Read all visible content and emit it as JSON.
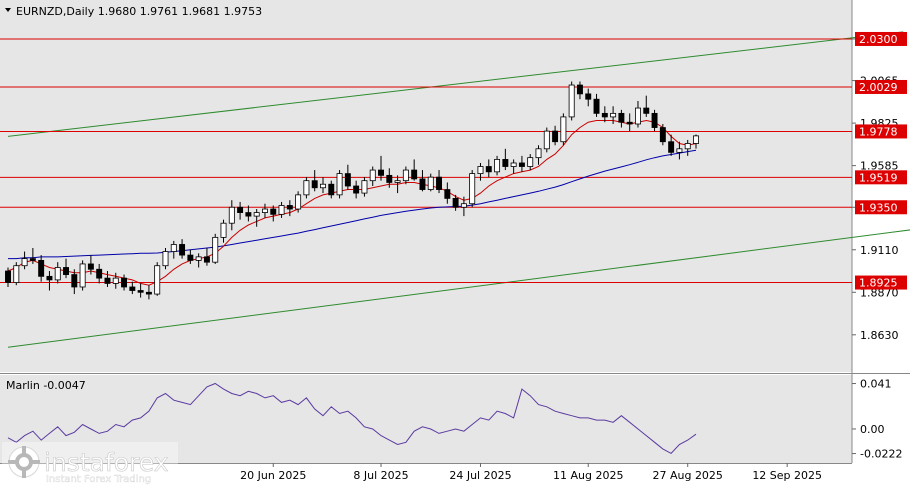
{
  "header": {
    "symbol_line": "EURNZD,Daily  1.9680 1.9761 1.9681 1.9753"
  },
  "indicator": {
    "label": "Marlin -0.0047"
  },
  "watermark": {
    "brand": "instaforex",
    "tagline": "Instant Forex Trading"
  },
  "colors": {
    "background": "#ffffff",
    "plot_bg": "#e6e6e6",
    "candle_up_fill": "#ffffff",
    "candle_down_fill": "#000000",
    "ma_fast": "#cc0000",
    "ma_slow": "#0000aa",
    "channel": "#2e8b2e",
    "level_line": "#dd0000",
    "level_label_bg": "#dd0000",
    "oscillator": "#5b3aa0"
  },
  "chart_data": [
    {
      "type": "candlestick",
      "title": "EURNZD,Daily",
      "ylim": [
        1.842,
        2.052
      ],
      "y_ticks": [
        "1.8630",
        "1.8870",
        "1.9110",
        "1.9350",
        "1.9585",
        "1.9825",
        "2.0065",
        "2.0300"
      ],
      "x_ticks": [
        {
          "label": "20 Jun 2025",
          "index": 32
        },
        {
          "label": "8 Jul 2025",
          "index": 45
        },
        {
          "label": "24 Jul 2025",
          "index": 57
        },
        {
          "label": "11 Aug 2025",
          "index": 70
        },
        {
          "label": "27 Aug 2025",
          "index": 82
        },
        {
          "label": "12 Sep 2025",
          "index": 94
        }
      ],
      "levels": [
        {
          "value": 2.03,
          "label": "2.0300"
        },
        {
          "value": 2.0029,
          "label": "2.0029"
        },
        {
          "value": 1.9778,
          "label": "1.9778"
        },
        {
          "value": 1.9519,
          "label": "1.9519"
        },
        {
          "value": 1.935,
          "label": "1.9350"
        },
        {
          "value": 1.8925,
          "label": "1.8925"
        }
      ],
      "channel_lines": [
        {
          "start": [
            0,
            1.975
          ],
          "end": [
            108,
            2.034
          ]
        },
        {
          "start": [
            0,
            1.856
          ],
          "end": [
            120,
            1.929
          ]
        }
      ],
      "ohlc": [
        [
          1.899,
          1.901,
          1.89,
          1.8925
        ],
        [
          1.8925,
          1.904,
          1.891,
          1.902
        ],
        [
          1.902,
          1.91,
          1.9,
          1.906
        ],
        [
          1.906,
          1.912,
          1.903,
          1.905
        ],
        [
          1.905,
          1.908,
          1.893,
          1.896
        ],
        [
          1.896,
          1.899,
          1.888,
          1.894
        ],
        [
          1.894,
          1.904,
          1.892,
          1.901
        ],
        [
          1.901,
          1.906,
          1.895,
          1.897
        ],
        [
          1.897,
          1.9,
          1.886,
          1.89
        ],
        [
          1.89,
          1.905,
          1.888,
          1.903
        ],
        [
          1.903,
          1.908,
          1.897,
          1.9
        ],
        [
          1.9,
          1.903,
          1.892,
          1.895
        ],
        [
          1.895,
          1.899,
          1.89,
          1.892
        ],
        [
          1.892,
          1.898,
          1.889,
          1.895
        ],
        [
          1.895,
          1.897,
          1.888,
          1.89
        ],
        [
          1.89,
          1.893,
          1.886,
          1.888
        ],
        [
          1.888,
          1.892,
          1.884,
          1.887
        ],
        [
          1.887,
          1.891,
          1.883,
          1.886
        ],
        [
          1.886,
          1.904,
          1.885,
          1.902
        ],
        [
          1.902,
          1.912,
          1.9,
          1.91
        ],
        [
          1.91,
          1.916,
          1.906,
          1.914
        ],
        [
          1.914,
          1.917,
          1.906,
          1.908
        ],
        [
          1.908,
          1.911,
          1.903,
          1.905
        ],
        [
          1.905,
          1.909,
          1.901,
          1.907
        ],
        [
          1.907,
          1.912,
          1.902,
          1.904
        ],
        [
          1.904,
          1.92,
          1.903,
          1.918
        ],
        [
          1.918,
          1.928,
          1.915,
          1.926
        ],
        [
          1.926,
          1.939,
          1.922,
          1.935
        ],
        [
          1.935,
          1.938,
          1.928,
          1.932
        ],
        [
          1.932,
          1.936,
          1.927,
          1.93
        ],
        [
          1.93,
          1.934,
          1.924,
          1.932
        ],
        [
          1.932,
          1.937,
          1.929,
          1.934
        ],
        [
          1.934,
          1.936,
          1.927,
          1.931
        ],
        [
          1.931,
          1.938,
          1.929,
          1.936
        ],
        [
          1.936,
          1.939,
          1.93,
          1.934
        ],
        [
          1.934,
          1.944,
          1.932,
          1.942
        ],
        [
          1.942,
          1.952,
          1.94,
          1.95
        ],
        [
          1.95,
          1.956,
          1.944,
          1.946
        ],
        [
          1.946,
          1.952,
          1.943,
          1.948
        ],
        [
          1.948,
          1.95,
          1.94,
          1.942
        ],
        [
          1.942,
          1.956,
          1.94,
          1.954
        ],
        [
          1.954,
          1.959,
          1.945,
          1.947
        ],
        [
          1.947,
          1.95,
          1.94,
          1.943
        ],
        [
          1.943,
          1.952,
          1.941,
          1.95
        ],
        [
          1.95,
          1.958,
          1.947,
          1.956
        ],
        [
          1.956,
          1.964,
          1.95,
          1.953
        ],
        [
          1.953,
          1.957,
          1.946,
          1.949
        ],
        [
          1.949,
          1.953,
          1.943,
          1.95
        ],
        [
          1.95,
          1.958,
          1.948,
          1.956
        ],
        [
          1.956,
          1.962,
          1.95,
          1.951
        ],
        [
          1.951,
          1.956,
          1.944,
          1.945
        ],
        [
          1.945,
          1.954,
          1.944,
          1.952
        ],
        [
          1.952,
          1.956,
          1.943,
          1.945
        ],
        [
          1.945,
          1.949,
          1.937,
          1.94
        ],
        [
          1.94,
          1.942,
          1.933,
          1.935
        ],
        [
          1.935,
          1.941,
          1.93,
          1.937
        ],
        [
          1.937,
          1.956,
          1.935,
          1.954
        ],
        [
          1.954,
          1.96,
          1.95,
          1.958
        ],
        [
          1.958,
          1.962,
          1.952,
          1.955
        ],
        [
          1.955,
          1.964,
          1.953,
          1.962
        ],
        [
          1.962,
          1.968,
          1.956,
          1.958
        ],
        [
          1.958,
          1.962,
          1.954,
          1.96
        ],
        [
          1.96,
          1.964,
          1.955,
          1.958
        ],
        [
          1.958,
          1.965,
          1.956,
          1.963
        ],
        [
          1.963,
          1.97,
          1.959,
          1.968
        ],
        [
          1.968,
          1.98,
          1.966,
          1.978
        ],
        [
          1.978,
          1.981,
          1.97,
          1.972
        ],
        [
          1.972,
          1.988,
          1.97,
          1.986
        ],
        [
          1.986,
          2.006,
          1.984,
          2.004
        ],
        [
          2.004,
          2.006,
          1.996,
          1.999
        ],
        [
          1.999,
          2.002,
          1.992,
          1.996
        ],
        [
          1.996,
          1.999,
          1.986,
          1.988
        ],
        [
          1.988,
          1.992,
          1.983,
          1.986
        ],
        [
          1.986,
          1.992,
          1.982,
          1.988
        ],
        [
          1.988,
          1.99,
          1.98,
          1.983
        ],
        [
          1.983,
          1.988,
          1.978,
          1.982
        ],
        [
          1.982,
          1.995,
          1.98,
          1.991
        ],
        [
          1.991,
          1.998,
          1.986,
          1.988
        ],
        [
          1.988,
          1.99,
          1.978,
          1.98
        ],
        [
          1.98,
          1.982,
          1.97,
          1.972
        ],
        [
          1.972,
          1.976,
          1.964,
          1.966
        ],
        [
          1.966,
          1.972,
          1.962,
          1.968
        ],
        [
          1.968,
          1.973,
          1.964,
          1.971
        ],
        [
          1.971,
          1.9761,
          1.9681,
          1.9753
        ]
      ],
      "ma_fast": [
        1.899,
        1.901,
        1.904,
        1.905,
        1.903,
        1.901,
        1.9,
        1.899,
        1.898,
        1.898,
        1.899,
        1.898,
        1.897,
        1.896,
        1.895,
        1.894,
        1.892,
        1.891,
        1.893,
        1.896,
        1.9,
        1.903,
        1.905,
        1.906,
        1.907,
        1.909,
        1.913,
        1.918,
        1.922,
        1.925,
        1.927,
        1.929,
        1.93,
        1.931,
        1.932,
        1.934,
        1.937,
        1.94,
        1.942,
        1.943,
        1.944,
        1.945,
        1.945,
        1.945,
        1.946,
        1.947,
        1.948,
        1.948,
        1.949,
        1.949,
        1.948,
        1.947,
        1.946,
        1.944,
        1.941,
        1.939,
        1.94,
        1.943,
        1.947,
        1.95,
        1.952,
        1.954,
        1.955,
        1.956,
        1.958,
        1.962,
        1.965,
        1.97,
        1.976,
        1.98,
        1.983,
        1.984,
        1.984,
        1.984,
        1.983,
        1.982,
        1.983,
        1.984,
        1.983,
        1.98,
        1.975,
        1.971,
        1.97,
        1.971
      ],
      "ma_slow": [
        1.906,
        1.906,
        1.9065,
        1.9065,
        1.907,
        1.907,
        1.907,
        1.9072,
        1.9074,
        1.9076,
        1.9078,
        1.908,
        1.9082,
        1.9084,
        1.9086,
        1.9088,
        1.909,
        1.909,
        1.9092,
        1.9096,
        1.91,
        1.9105,
        1.911,
        1.9115,
        1.912,
        1.9125,
        1.9132,
        1.914,
        1.9148,
        1.9156,
        1.9164,
        1.9172,
        1.918,
        1.9188,
        1.9196,
        1.9204,
        1.9214,
        1.9224,
        1.9234,
        1.9244,
        1.9254,
        1.9264,
        1.9274,
        1.9284,
        1.9294,
        1.9304,
        1.9312,
        1.932,
        1.9328,
        1.9334,
        1.934,
        1.9346,
        1.935,
        1.9352,
        1.9354,
        1.9356,
        1.9362,
        1.937,
        1.938,
        1.939,
        1.94,
        1.941,
        1.942,
        1.943,
        1.944,
        1.9452,
        1.9464,
        1.9478,
        1.9494,
        1.951,
        1.9526,
        1.954,
        1.9554,
        1.9566,
        1.9578,
        1.959,
        1.9604,
        1.9618,
        1.963,
        1.964,
        1.9648,
        1.9656,
        1.9664,
        1.9672
      ]
    },
    {
      "type": "line",
      "title": "Marlin -0.0047",
      "ylim": [
        -0.028,
        0.046
      ],
      "y_ticks": [
        "0.041",
        "0.00",
        "-0.0222"
      ],
      "values": [
        -0.008,
        -0.012,
        -0.006,
        -0.002,
        -0.01,
        -0.004,
        0.002,
        -0.006,
        -0.003,
        0.004,
        0.0,
        -0.004,
        -0.002,
        0.004,
        0.002,
        0.008,
        0.01,
        0.016,
        0.028,
        0.032,
        0.026,
        0.024,
        0.022,
        0.03,
        0.038,
        0.041,
        0.036,
        0.032,
        0.03,
        0.034,
        0.032,
        0.028,
        0.03,
        0.024,
        0.026,
        0.022,
        0.028,
        0.018,
        0.012,
        0.02,
        0.014,
        0.016,
        0.01,
        0.002,
        0.0,
        -0.006,
        -0.01,
        -0.014,
        -0.012,
        -0.002,
        0.002,
        0.0,
        -0.004,
        -0.002,
        0.0,
        -0.002,
        0.004,
        0.01,
        0.008,
        0.016,
        0.014,
        0.01,
        0.036,
        0.03,
        0.022,
        0.02,
        0.016,
        0.014,
        0.012,
        0.01,
        0.01,
        0.008,
        0.008,
        0.006,
        0.012,
        0.006,
        0.0,
        -0.006,
        -0.012,
        -0.018,
        -0.022,
        -0.014,
        -0.01,
        -0.0047
      ]
    }
  ]
}
